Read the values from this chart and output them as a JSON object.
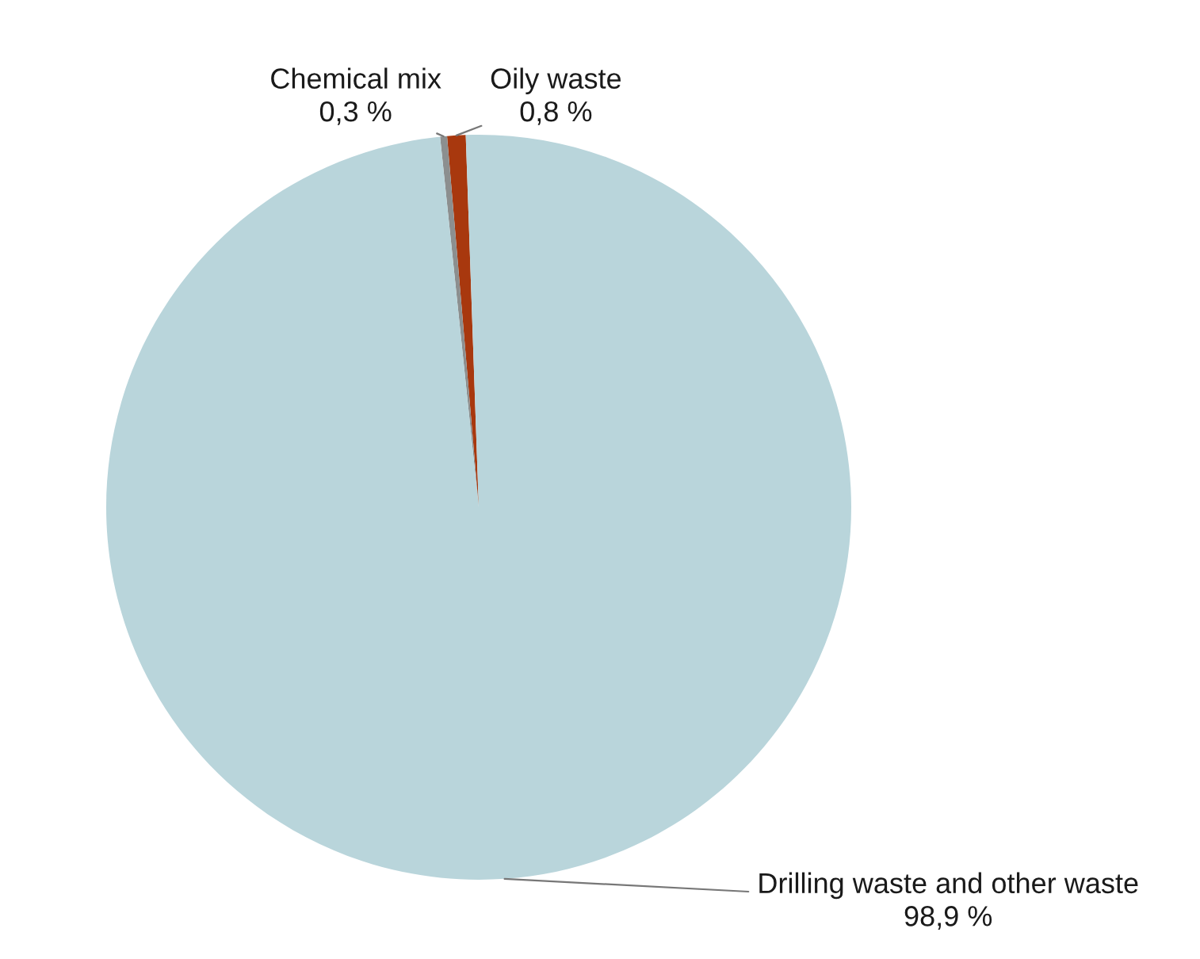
{
  "chart_data": {
    "type": "pie",
    "categories": [
      "Oily waste",
      "Chemical mix",
      "Drilling waste and other waste"
    ],
    "values": [
      0.8,
      0.3,
      98.9
    ],
    "value_labels": [
      "0,8 %",
      "0,3 %",
      "98,9 %"
    ],
    "colors": [
      "#a8380e",
      "#8c8f8f",
      "#b9d5db"
    ]
  }
}
